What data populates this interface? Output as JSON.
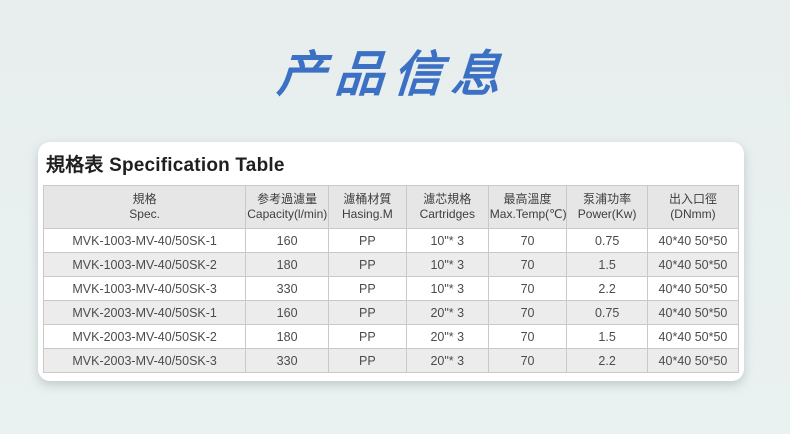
{
  "page": {
    "title": "产品信息",
    "title_color": "#3b70c4"
  },
  "card": {
    "heading": "規格表 Specification Table",
    "table": {
      "columns": [
        {
          "zh": "規格",
          "en": "Spec."
        },
        {
          "zh": "参考過濾量",
          "en": "Capacity(l/min)"
        },
        {
          "zh": "濾桶材質",
          "en": "Hasing.M"
        },
        {
          "zh": "濾芯規格",
          "en": "Cartridges"
        },
        {
          "zh": "最高溫度",
          "en": "Max.Temp(℃)"
        },
        {
          "zh": "泵浦功率",
          "en": "Power(Kw)"
        },
        {
          "zh": "出入口徑",
          "en": "(DNmm)"
        }
      ],
      "rows": [
        [
          "MVK-1003-MV-40/50SK-1",
          "160",
          "PP",
          "10\"* 3",
          "70",
          "0.75",
          "40*40 50*50"
        ],
        [
          "MVK-1003-MV-40/50SK-2",
          "180",
          "PP",
          "10\"* 3",
          "70",
          "1.5",
          "40*40 50*50"
        ],
        [
          "MVK-1003-MV-40/50SK-3",
          "330",
          "PP",
          "10\"* 3",
          "70",
          "2.2",
          "40*40 50*50"
        ],
        [
          "MVK-2003-MV-40/50SK-1",
          "160",
          "PP",
          "20\"* 3",
          "70",
          "0.75",
          "40*40 50*50"
        ],
        [
          "MVK-2003-MV-40/50SK-2",
          "180",
          "PP",
          "20\"* 3",
          "70",
          "1.5",
          "40*40 50*50"
        ],
        [
          "MVK-2003-MV-40/50SK-3",
          "330",
          "PP",
          "20\"* 3",
          "70",
          "2.2",
          "40*40 50*50"
        ]
      ]
    }
  }
}
